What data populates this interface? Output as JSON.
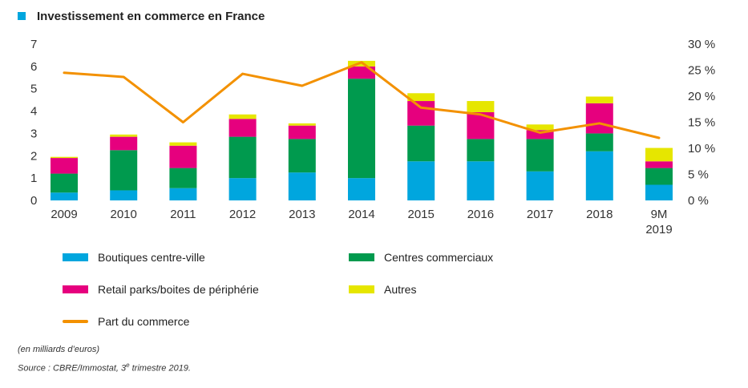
{
  "title": "Investissement en commerce en France",
  "chart_data": {
    "type": "bar",
    "stacked": true,
    "categories": [
      "2009",
      "2010",
      "2011",
      "2012",
      "2013",
      "2014",
      "2015",
      "2016",
      "2017",
      "2018",
      "9M 2019"
    ],
    "category_lines": [
      [
        "2009"
      ],
      [
        "2010"
      ],
      [
        "2011"
      ],
      [
        "2012"
      ],
      [
        "2013"
      ],
      [
        "2014"
      ],
      [
        "2015"
      ],
      [
        "2016"
      ],
      [
        "2017"
      ],
      [
        "2018"
      ],
      [
        "9M",
        "2019"
      ]
    ],
    "series": [
      {
        "name": "Boutiques centre-ville",
        "color": "#00a6de",
        "values": [
          0.35,
          0.45,
          0.55,
          1.0,
          1.25,
          1.0,
          1.75,
          1.75,
          1.3,
          2.2,
          0.7
        ]
      },
      {
        "name": "Centres commerciaux",
        "color": "#009a4e",
        "values": [
          0.85,
          1.8,
          0.9,
          1.85,
          1.5,
          4.45,
          1.6,
          1.0,
          1.45,
          0.8,
          0.75
        ]
      },
      {
        "name": "Retail parks/boites de périphérie",
        "color": "#e6007e",
        "values": [
          0.7,
          0.6,
          1.0,
          0.8,
          0.6,
          0.55,
          1.1,
          1.2,
          0.4,
          1.35,
          0.3
        ]
      },
      {
        "name": "Autres",
        "color": "#e6e600",
        "values": [
          0.05,
          0.1,
          0.15,
          0.2,
          0.1,
          0.25,
          0.35,
          0.5,
          0.25,
          0.3,
          0.6
        ]
      }
    ],
    "line_series": {
      "name": "Part du commerce",
      "color": "#f39100",
      "axis": "right",
      "values": [
        24.5,
        23.7,
        15.0,
        24.3,
        22.0,
        26.5,
        17.8,
        16.5,
        13.0,
        14.8,
        12.0
      ]
    },
    "y_left": {
      "min": 0,
      "max": 7,
      "ticks": [
        "0",
        "1",
        "2",
        "3",
        "4",
        "5",
        "6",
        "7"
      ]
    },
    "y_right": {
      "min": 0,
      "max": 30,
      "ticks": [
        "0 %",
        "5 %",
        "10 %",
        "15 %",
        "20 %",
        "25 %",
        "30 %"
      ]
    },
    "grid": false,
    "legend_position": "bottom"
  },
  "notes": {
    "unit": "(en milliards d’euros)",
    "source_prefix": "Source : CBRE/Immostat, 3",
    "source_sup": "e",
    "source_suffix": " trimestre 2019."
  }
}
